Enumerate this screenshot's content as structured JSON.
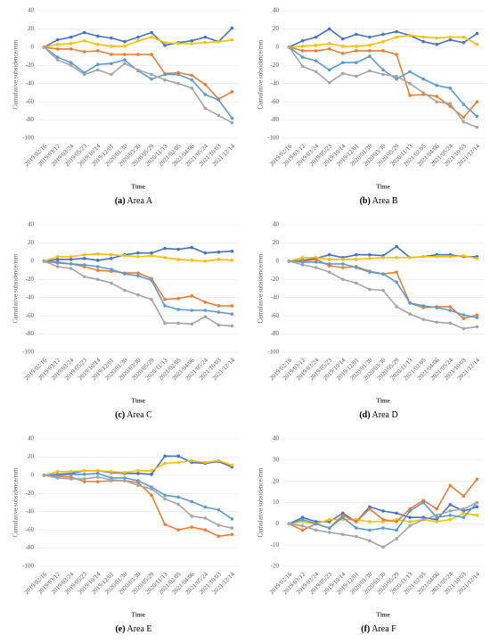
{
  "chart_data": [
    {
      "type": "line",
      "caption_label": "(a)",
      "caption_text": "Area A",
      "x_label": "Time",
      "y_label": "Cumulative subsidence/mm",
      "categories": [
        "2019/02/16",
        "2019/03/12",
        "2019/03/24",
        "2019/05/23",
        "2019/10/14",
        "2019/12/01",
        "2020/01/30",
        "2020/03/30",
        "2020/05/29",
        "2020/11/13",
        "2021/02/05",
        "2021/04/06",
        "2021/05/24",
        "2021/10/03",
        "2021/12/14"
      ],
      "ylim": [
        -100,
        40
      ],
      "yticks": [
        -100,
        -80,
        -60,
        -40,
        -20,
        0,
        20,
        40
      ],
      "grid": true,
      "series": [
        {
          "color": "#4472c4",
          "values": [
            0,
            8,
            11,
            16,
            12,
            10,
            6,
            11,
            16,
            2,
            5,
            7,
            11,
            6,
            21
          ]
        },
        {
          "color": "#ffc000",
          "values": [
            0,
            3,
            4,
            7,
            3,
            1,
            1,
            7,
            11,
            5,
            4,
            4,
            5,
            6,
            8
          ]
        },
        {
          "color": "#ed7d31",
          "values": [
            0,
            -2,
            -2,
            -5,
            -4,
            -8,
            -8,
            -8,
            -8,
            -29,
            -28,
            -31,
            -41,
            -57,
            -49
          ]
        },
        {
          "color": "#5b9bd5",
          "values": [
            0,
            -11,
            -17,
            -28,
            -19,
            -18,
            -14,
            -26,
            -35,
            -30,
            -30,
            -36,
            -52,
            -58,
            -78
          ]
        },
        {
          "color": "#a5a5a5",
          "values": [
            0,
            -14,
            -20,
            -30,
            -25,
            -30,
            -18,
            -25,
            -30,
            -36,
            -40,
            -45,
            -67,
            -75,
            -83
          ]
        }
      ]
    },
    {
      "type": "line",
      "caption_label": "(b)",
      "caption_text": "Area B",
      "x_label": "Time",
      "y_label": "Cumulative subsidence/mm",
      "categories": [
        "2019/02/16",
        "2019/03/12",
        "2019/03/24",
        "2019/05/23",
        "2019/10/14",
        "2019/12/01",
        "2020/01/30",
        "2020/03/30",
        "2020/05/29",
        "2020/11/13",
        "2021/02/05",
        "2021/04/06",
        "2021/05/24",
        "2021/10/03",
        "2021/12/14"
      ],
      "ylim": [
        -100,
        40
      ],
      "yticks": [
        -100,
        -80,
        -60,
        -40,
        -20,
        0,
        20,
        40
      ],
      "grid": true,
      "series": [
        {
          "color": "#4472c4",
          "values": [
            0,
            7,
            11,
            20,
            9,
            14,
            11,
            14,
            17,
            13,
            6,
            3,
            8,
            5,
            15
          ]
        },
        {
          "color": "#ffc000",
          "values": [
            0,
            1,
            2,
            4,
            1,
            1,
            2,
            6,
            11,
            13,
            11,
            10,
            11,
            11,
            3
          ]
        },
        {
          "color": "#ed7d31",
          "values": [
            0,
            -4,
            -4,
            -2,
            -7,
            -4,
            -4,
            -4,
            -8,
            -53,
            -52,
            -54,
            -65,
            -77,
            -60
          ]
        },
        {
          "color": "#5b9bd5",
          "values": [
            0,
            -11,
            -15,
            -25,
            -17,
            -17,
            -10,
            -25,
            -35,
            -27,
            -35,
            -42,
            -45,
            -63,
            -76
          ]
        },
        {
          "color": "#a5a5a5",
          "values": [
            0,
            -21,
            -27,
            -39,
            -29,
            -32,
            -26,
            -30,
            -32,
            -40,
            -50,
            -60,
            -62,
            -82,
            -88
          ]
        }
      ]
    },
    {
      "type": "line",
      "caption_label": "(c)",
      "caption_text": "Area C",
      "x_label": "Time",
      "y_label": "Cumulative subsidence/mm",
      "categories": [
        "2019/02/16",
        "2019/03/12",
        "2019/03/24",
        "2019/05/23",
        "2019/10/14",
        "2019/12/01",
        "2020/01/30",
        "2020/03/30",
        "2020/05/29",
        "2020/11/13",
        "2021/02/05",
        "2021/04/06",
        "2021/05/24",
        "2021/10/03",
        "2021/12/14"
      ],
      "ylim": [
        -100,
        40
      ],
      "yticks": [
        -100,
        -80,
        -60,
        -40,
        -20,
        0,
        20,
        40
      ],
      "grid": true,
      "series": [
        {
          "color": "#4472c4",
          "values": [
            0,
            2,
            2,
            3,
            1,
            3,
            7,
            9,
            9,
            14,
            13,
            15,
            9,
            10,
            11
          ]
        },
        {
          "color": "#ffc000",
          "values": [
            0,
            5,
            5,
            7,
            8,
            7,
            6,
            5,
            6,
            4,
            2,
            1,
            0,
            2,
            1
          ]
        },
        {
          "color": "#ed7d31",
          "values": [
            0,
            -2,
            -3,
            -6,
            -10,
            -11,
            -13,
            -13,
            -19,
            -42,
            -41,
            -38,
            -45,
            -49,
            -49
          ]
        },
        {
          "color": "#5b9bd5",
          "values": [
            0,
            -1,
            -3,
            -4,
            -6,
            -9,
            -14,
            -16,
            -21,
            -49,
            -53,
            -54,
            -54,
            -56,
            -58
          ]
        },
        {
          "color": "#a5a5a5",
          "values": [
            0,
            -6,
            -8,
            -17,
            -20,
            -24,
            -32,
            -37,
            -42,
            -68,
            -68,
            -69,
            -61,
            -70,
            -71
          ]
        }
      ]
    },
    {
      "type": "line",
      "caption_label": "(d)",
      "caption_text": "Area D",
      "x_label": "Time",
      "y_label": "Cumulative subsidence/mm",
      "categories": [
        "2019/02/16",
        "2019/03/12",
        "2019/03/24",
        "2019/05/23",
        "2019/10/14",
        "2019/12/01",
        "2020/01/30",
        "2020/03/30",
        "2020/05/29",
        "2020/11/13",
        "2021/02/05",
        "2021/04/06",
        "2021/05/24",
        "2021/10/03",
        "2021/12/14"
      ],
      "ylim": [
        -100,
        40
      ],
      "yticks": [
        -100,
        -80,
        -60,
        -40,
        -20,
        0,
        20,
        40
      ],
      "grid": true,
      "series": [
        {
          "color": "#4472c4",
          "values": [
            0,
            1,
            3,
            7,
            4,
            7,
            7,
            6,
            16,
            4,
            5,
            7,
            7,
            5,
            5
          ]
        },
        {
          "color": "#ffc000",
          "values": [
            0,
            4,
            4,
            2,
            2,
            2,
            3,
            4,
            4,
            4,
            5,
            5,
            5,
            6,
            3
          ]
        },
        {
          "color": "#ed7d31",
          "values": [
            0,
            0,
            2,
            -5,
            -7,
            -6,
            -11,
            -14,
            -12,
            -46,
            -51,
            -50,
            -50,
            -63,
            -59
          ]
        },
        {
          "color": "#5b9bd5",
          "values": [
            0,
            -1,
            -1,
            -3,
            -3,
            -7,
            -12,
            -14,
            -23,
            -46,
            -49,
            -51,
            -54,
            -59,
            -62
          ]
        },
        {
          "color": "#a5a5a5",
          "values": [
            0,
            -4,
            -7,
            -12,
            -20,
            -24,
            -31,
            -32,
            -50,
            -58,
            -64,
            -67,
            -68,
            -74,
            -72
          ]
        }
      ]
    },
    {
      "type": "line",
      "caption_label": "(e)",
      "caption_text": "Area E",
      "x_label": "Time",
      "y_label": "Cumulative subsidence/mm",
      "categories": [
        "2019/02/16",
        "2019/03/12",
        "2019/03/24",
        "2019/05/23",
        "2019/10/14",
        "2019/12/01",
        "2020/01/30",
        "2020/03/30",
        "2020/05/29",
        "2020/11/13",
        "2021/02/05",
        "2021/04/06",
        "2021/05/24",
        "2021/10/03",
        "2021/12/14"
      ],
      "ylim": [
        -100,
        40
      ],
      "yticks": [
        -100,
        -80,
        -60,
        -40,
        -20,
        0,
        20,
        40
      ],
      "grid": true,
      "series": [
        {
          "color": "#4472c4",
          "values": [
            0,
            1,
            2,
            5,
            5,
            3,
            2,
            2,
            1,
            21,
            21,
            14,
            13,
            15,
            9
          ]
        },
        {
          "color": "#ffc000",
          "values": [
            0,
            4,
            4,
            5,
            5,
            4,
            3,
            5,
            5,
            13,
            14,
            16,
            14,
            16,
            11
          ]
        },
        {
          "color": "#ed7d31",
          "values": [
            0,
            -1,
            -2,
            -7,
            -7,
            -6,
            -6,
            -8,
            -22,
            -54,
            -60,
            -57,
            -60,
            -67,
            -65
          ]
        },
        {
          "color": "#5b9bd5",
          "values": [
            0,
            0,
            1,
            1,
            2,
            -3,
            -3,
            -6,
            -13,
            -22,
            -24,
            -29,
            -35,
            -38,
            -48
          ]
        },
        {
          "color": "#a5a5a5",
          "values": [
            0,
            -3,
            -4,
            -4,
            -2,
            -5,
            -6,
            -11,
            -15,
            -26,
            -32,
            -45,
            -47,
            -55,
            -58
          ]
        }
      ]
    },
    {
      "type": "line",
      "caption_label": "(f)",
      "caption_text": "Area F",
      "x_label": "Time",
      "y_label": "Cumulative subsidence/mm",
      "categories": [
        "2019/02/16",
        "2019/03/12",
        "2019/03/24",
        "2019/05/23",
        "2019/10/14",
        "2019/12/01",
        "2020/01/30",
        "2020/03/30",
        "2020/05/29",
        "2020/11/13",
        "2021/02/05",
        "2021/04/06",
        "2021/05/24",
        "2021/10/03",
        "2021/12/14"
      ],
      "ylim": [
        -20,
        40
      ],
      "yticks": [
        -20,
        -10,
        0,
        10,
        20,
        30,
        40
      ],
      "grid": true,
      "series": [
        {
          "color": "#4472c4",
          "values": [
            0,
            3,
            1,
            1,
            5,
            1,
            8,
            6,
            5,
            3,
            3,
            2,
            9,
            6,
            8
          ]
        },
        {
          "color": "#ffc000",
          "values": [
            0,
            1,
            0,
            2,
            2,
            2,
            1,
            1,
            2,
            1,
            2,
            1,
            2,
            5,
            4
          ]
        },
        {
          "color": "#ed7d31",
          "values": [
            0,
            -3,
            0,
            -2,
            4,
            1,
            7,
            2,
            1,
            7,
            11,
            7,
            18,
            13,
            21
          ]
        },
        {
          "color": "#5b9bd5",
          "values": [
            0,
            2,
            0,
            -2,
            3,
            -2,
            -3,
            -2,
            -3,
            6,
            10,
            3,
            4,
            3,
            10
          ]
        },
        {
          "color": "#a5a5a5",
          "values": [
            0,
            -1,
            -3,
            -4,
            -5,
            -6,
            -8,
            -11,
            -7,
            -1,
            2,
            4,
            6,
            7,
            10
          ]
        }
      ]
    }
  ]
}
